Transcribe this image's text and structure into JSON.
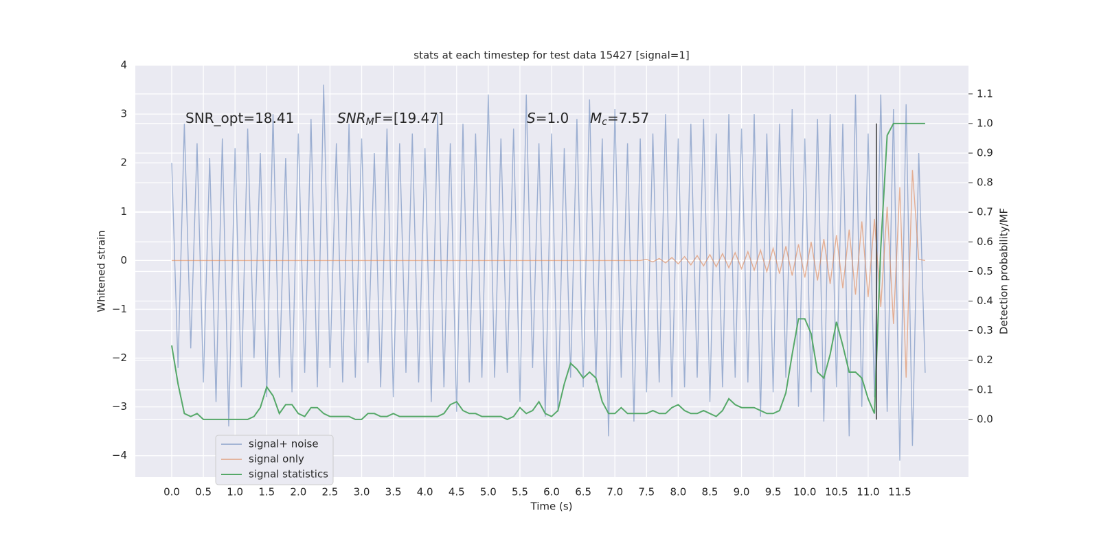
{
  "chart_data": {
    "type": "line",
    "title": "stats at each timestep for test data 15427 [signal=1]",
    "xlabel": "Time (s)",
    "ylabel": "Whitened strain",
    "y2label": "Detection probability/MF",
    "annotations": [
      {
        "main": "SNR_opt=18.41"
      },
      {
        "main": "SNR",
        "sub": "M",
        "rest": "F=[19.47]"
      },
      {
        "main": "S",
        "rest": "=1.0"
      },
      {
        "main": "M",
        "sub": "c",
        "rest": "=7.57"
      }
    ],
    "xlim": [
      -0.575,
      12.585
    ],
    "ylim": [
      -4.44,
      4
    ],
    "y2lim": [
      -0.195,
      1.197
    ],
    "xticks": [
      {
        "value": 0,
        "label": "0.0"
      },
      0.5,
      {
        "value": 1,
        "label": "1.0"
      },
      1.5,
      {
        "value": 2,
        "label": "2.0"
      },
      2.5,
      {
        "value": 3,
        "label": "3.0"
      },
      3.5,
      {
        "value": 4,
        "label": "4.0"
      },
      4.5,
      {
        "value": 5,
        "label": "5.0"
      },
      5.5,
      {
        "value": 6,
        "label": "6.0"
      },
      6.5,
      {
        "value": 7,
        "label": "7.0"
      },
      7.5,
      {
        "value": 8,
        "label": "8.0"
      },
      8.5,
      {
        "value": 9,
        "label": "9.0"
      },
      9.5,
      {
        "value": 10,
        "label": "10.0"
      },
      10.5,
      {
        "value": 11,
        "label": "11.0"
      },
      11.5
    ],
    "yticks": [
      {
        "value": -4,
        "label": "−4"
      },
      {
        "value": -3,
        "label": "−3"
      },
      {
        "value": -2,
        "label": "−2"
      },
      {
        "value": -1,
        "label": "−1"
      },
      0,
      1,
      2,
      3,
      4
    ],
    "y2ticks": [
      {
        "value": 0,
        "label": "0.0"
      },
      0.1,
      0.2,
      0.3,
      0.4,
      0.5,
      0.6,
      0.7,
      0.8,
      0.9,
      {
        "value": 1,
        "label": "1.0"
      },
      1.1
    ],
    "grid": true,
    "legend": "lower left",
    "vline": {
      "x": 11.13,
      "y2": [
        0,
        1
      ],
      "color": "#333333"
    },
    "x": [
      0.0,
      0.1,
      0.2,
      0.3,
      0.4,
      0.5,
      0.6,
      0.7,
      0.8,
      0.9,
      1.0,
      1.1,
      1.2,
      1.3,
      1.4,
      1.5,
      1.6,
      1.7,
      1.8,
      1.9,
      2.0,
      2.1,
      2.2,
      2.3,
      2.4,
      2.5,
      2.6,
      2.7,
      2.8,
      2.9,
      3.0,
      3.1,
      3.2,
      3.3,
      3.4,
      3.5,
      3.6,
      3.7,
      3.8,
      3.9,
      4.0,
      4.1,
      4.2,
      4.3,
      4.4,
      4.5,
      4.6,
      4.7,
      4.8,
      4.9,
      5.0,
      5.1,
      5.2,
      5.3,
      5.4,
      5.5,
      5.6,
      5.7,
      5.8,
      5.9,
      6.0,
      6.1,
      6.2,
      6.3,
      6.4,
      6.5,
      6.6,
      6.7,
      6.8,
      6.9,
      7.0,
      7.1,
      7.2,
      7.3,
      7.4,
      7.5,
      7.6,
      7.7,
      7.8,
      7.9,
      8.0,
      8.1,
      8.2,
      8.3,
      8.4,
      8.5,
      8.6,
      8.7,
      8.8,
      8.9,
      9.0,
      9.1,
      9.2,
      9.3,
      9.4,
      9.5,
      9.6,
      9.7,
      9.8,
      9.9,
      10.0,
      10.1,
      10.2,
      10.3,
      10.4,
      10.5,
      10.6,
      10.7,
      10.8,
      10.9,
      11.0,
      11.1,
      11.2,
      11.3,
      11.4,
      11.5,
      11.6,
      11.7,
      11.8,
      11.9
    ],
    "series": [
      {
        "name": "signal+ noise",
        "color": "#4c72b0",
        "values": [
          2.0,
          -2.2,
          2.8,
          -1.8,
          2.4,
          -2.5,
          2.1,
          -2.9,
          2.5,
          -3.4,
          2.3,
          -2.6,
          2.7,
          -2.0,
          2.2,
          -2.8,
          3.0,
          -2.4,
          2.1,
          -2.7,
          2.6,
          -2.3,
          2.9,
          -2.6,
          3.6,
          -2.2,
          2.4,
          -2.5,
          2.8,
          -2.4,
          2.5,
          -2.1,
          2.2,
          -2.6,
          2.7,
          -2.8,
          2.4,
          -2.3,
          2.6,
          -2.5,
          2.3,
          -2.9,
          3.0,
          -2.6,
          2.4,
          -3.1,
          2.8,
          -2.5,
          2.6,
          -2.4,
          3.4,
          -2.4,
          2.5,
          -2.3,
          2.7,
          -2.9,
          3.4,
          -2.2,
          2.4,
          -3.2,
          2.6,
          -3.1,
          2.3,
          -2.4,
          2.9,
          -2.6,
          3.3,
          -2.5,
          2.5,
          -3.6,
          3.1,
          -2.4,
          2.4,
          -3.3,
          2.5,
          -2.7,
          2.6,
          -2.5,
          3.0,
          -2.8,
          2.5,
          -2.6,
          2.8,
          -2.4,
          2.9,
          -2.9,
          2.6,
          -2.6,
          3.0,
          -2.4,
          2.7,
          -2.5,
          3.0,
          -3.2,
          2.6,
          -2.7,
          2.8,
          -2.4,
          3.1,
          -3.0,
          2.5,
          -2.7,
          2.9,
          -3.3,
          3.0,
          -2.6,
          2.8,
          -3.6,
          3.4,
          -3.0,
          2.6,
          -2.8,
          3.4,
          -3.1,
          3.1,
          -4.1,
          3.2,
          -3.8,
          2.2,
          -2.3
        ]
      },
      {
        "name": "signal only",
        "color": "#dd8452",
        "values": [
          0,
          0,
          0,
          0,
          0,
          0,
          0,
          0,
          0,
          0,
          0,
          0,
          0,
          0,
          0,
          0,
          0,
          0,
          0,
          0,
          0,
          0,
          0,
          0,
          0,
          0,
          0,
          0,
          0,
          0,
          0,
          0,
          0,
          0,
          0,
          0,
          0,
          0,
          0,
          0,
          0,
          0,
          0,
          0,
          0,
          0,
          0,
          0,
          0,
          0,
          0,
          0,
          0,
          0,
          0,
          0,
          0,
          0,
          0,
          0,
          0,
          0,
          0,
          0,
          0,
          0,
          0,
          0,
          0,
          0,
          0,
          0,
          0,
          0,
          0,
          0.02,
          -0.03,
          0.04,
          -0.05,
          0.06,
          -0.07,
          0.08,
          -0.09,
          0.1,
          -0.11,
          0.12,
          -0.13,
          0.14,
          -0.15,
          0.16,
          -0.17,
          0.18,
          -0.2,
          0.21,
          -0.23,
          0.25,
          -0.27,
          0.29,
          -0.31,
          0.33,
          -0.35,
          0.38,
          -0.41,
          0.44,
          -0.48,
          0.52,
          -0.57,
          0.63,
          -0.7,
          0.8,
          -0.75,
          0.85,
          -0.95,
          1.1,
          -1.3,
          1.5,
          -2.4,
          1.85,
          0.02,
          0
        ]
      },
      {
        "name": "signal statistics",
        "color": "#55a868",
        "axis": "y2",
        "values": [
          0.25,
          0.12,
          0.02,
          0.01,
          0.02,
          0.0,
          0.0,
          0.0,
          0.0,
          0.0,
          0.0,
          0.0,
          0.0,
          0.01,
          0.04,
          0.11,
          0.08,
          0.02,
          0.05,
          0.05,
          0.02,
          0.01,
          0.04,
          0.04,
          0.02,
          0.01,
          0.01,
          0.01,
          0.01,
          0.0,
          0.0,
          0.02,
          0.02,
          0.01,
          0.01,
          0.02,
          0.01,
          0.01,
          0.01,
          0.01,
          0.01,
          0.01,
          0.01,
          0.02,
          0.05,
          0.06,
          0.03,
          0.02,
          0.02,
          0.01,
          0.01,
          0.01,
          0.01,
          0.0,
          0.01,
          0.04,
          0.02,
          0.03,
          0.06,
          0.02,
          0.01,
          0.03,
          0.12,
          0.19,
          0.17,
          0.14,
          0.16,
          0.14,
          0.06,
          0.02,
          0.02,
          0.04,
          0.02,
          0.02,
          0.02,
          0.02,
          0.03,
          0.02,
          0.02,
          0.04,
          0.05,
          0.03,
          0.02,
          0.02,
          0.03,
          0.02,
          0.01,
          0.03,
          0.07,
          0.05,
          0.04,
          0.04,
          0.04,
          0.03,
          0.02,
          0.02,
          0.03,
          0.09,
          0.22,
          0.34,
          0.34,
          0.29,
          0.16,
          0.14,
          0.22,
          0.33,
          0.25,
          0.16,
          0.16,
          0.14,
          0.07,
          0.02,
          0.58,
          0.96,
          1.0,
          1.0,
          1.0,
          1.0,
          1.0,
          1.0
        ]
      }
    ]
  }
}
